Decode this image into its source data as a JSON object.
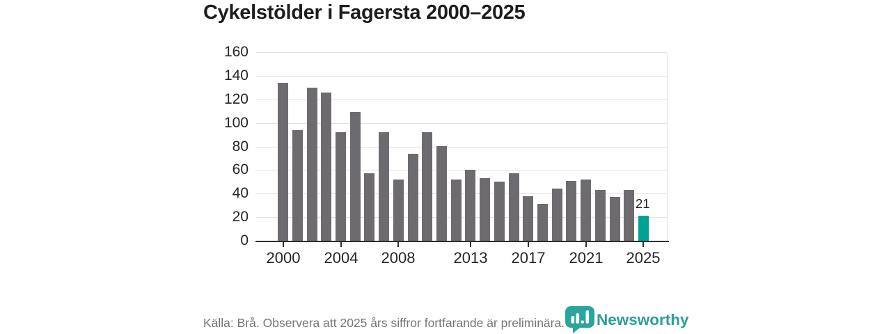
{
  "page": {
    "title": "Cykelstölder i Fagersta 2000–2025"
  },
  "chart_data": {
    "type": "bar",
    "title": "Cykelstölder i Fagersta 2000–2025",
    "x": [
      2000,
      2001,
      2002,
      2003,
      2004,
      2005,
      2006,
      2007,
      2008,
      2009,
      2010,
      2011,
      2012,
      2013,
      2014,
      2015,
      2016,
      2017,
      2018,
      2019,
      2020,
      2021,
      2022,
      2023,
      2024,
      2025
    ],
    "values": [
      134,
      94,
      130,
      126,
      92,
      109,
      57,
      92,
      52,
      74,
      92,
      80,
      52,
      60,
      53,
      50,
      57,
      38,
      31,
      44,
      51,
      52,
      43,
      37,
      43,
      21
    ],
    "bar_color": "#6e6b70",
    "highlight": {
      "year": 2025,
      "value": 21,
      "label": "21",
      "color": "#00a296"
    },
    "ylim": [
      0,
      160
    ],
    "yticks": [
      0,
      20,
      40,
      60,
      80,
      100,
      120,
      140,
      160
    ],
    "xticks": [
      2000,
      2004,
      2008,
      2013,
      2017,
      2021,
      2025
    ],
    "grid": true,
    "legend": false,
    "xlabel": "",
    "ylabel": ""
  },
  "footer": {
    "source_note": "Källa: Brå. Observera att 2025 års siffror fortfarande är preliminära."
  },
  "logo": {
    "text": "Newsworthy",
    "icon": "newsworthy-shield-bar-chart-icon",
    "color": "#2b9e97"
  },
  "colors": {
    "title": "#1d1d1d",
    "tick_label": "#262626",
    "grid": "#e2e2e2",
    "axis": "#2e2e2e",
    "footer_text": "#75757b"
  }
}
